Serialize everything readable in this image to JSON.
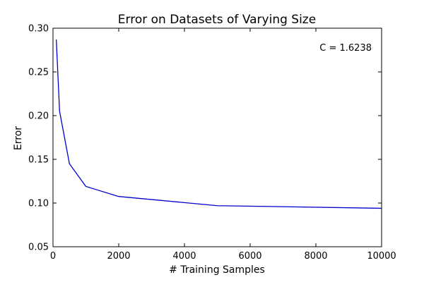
{
  "chart_data": {
    "type": "line",
    "title": "Error on Datasets of Varying Size",
    "xlabel": "# Training Samples",
    "ylabel": "Error",
    "xlim": [
      0,
      10000
    ],
    "ylim": [
      0.05,
      0.3
    ],
    "x_ticks": [
      0,
      2000,
      4000,
      6000,
      8000,
      10000
    ],
    "y_ticks": [
      0.05,
      0.1,
      0.15,
      0.2,
      0.25,
      0.3
    ],
    "x_tick_labels": [
      "0",
      "2000",
      "4000",
      "6000",
      "8000",
      "10000"
    ],
    "y_tick_labels": [
      "0.05",
      "0.10",
      "0.15",
      "0.20",
      "0.25",
      "0.30"
    ],
    "annotation": "C = 1.6238",
    "grid": false,
    "series": [
      {
        "color": "#0000cc",
        "x": [
          100,
          200,
          500,
          1000,
          2000,
          5000,
          10000
        ],
        "y": [
          0.287,
          0.205,
          0.145,
          0.119,
          0.1075,
          0.097,
          0.094
        ]
      }
    ]
  }
}
